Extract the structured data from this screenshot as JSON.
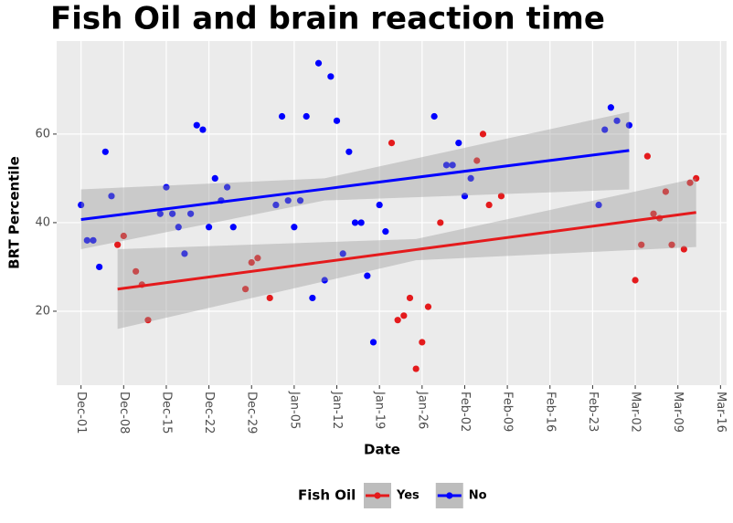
{
  "chart_data": {
    "type": "scatter",
    "title": "Fish Oil and brain reaction time",
    "x_label": "Date",
    "y_label": "BRT Percentile",
    "xlim": [
      "Nov-27",
      "Mar-17"
    ],
    "xticks": [
      "Dec-01",
      "Dec-08",
      "Dec-15",
      "Dec-22",
      "Dec-29",
      "Jan-05",
      "Jan-12",
      "Jan-19",
      "Jan-26",
      "Feb-02",
      "Feb-09",
      "Feb-16",
      "Feb-23",
      "Mar-02",
      "Mar-09",
      "Mar-16"
    ],
    "ylim": [
      3.3,
      81
    ],
    "yticks": [
      20,
      40,
      60
    ],
    "grid": true,
    "legend_title": "Fish Oil",
    "legend_position": "bottom",
    "series": [
      {
        "name": "Yes",
        "color": "#e41a1c",
        "x": [
          "Dec-07",
          "Dec-08",
          "Dec-10",
          "Dec-11",
          "Dec-12",
          "Dec-28",
          "Dec-29",
          "Dec-30",
          "Jan-01",
          "Jan-21",
          "Jan-22",
          "Jan-23",
          "Jan-24",
          "Jan-25",
          "Jan-26",
          "Jan-27",
          "Jan-29",
          "Feb-04",
          "Feb-05",
          "Feb-06",
          "Feb-08",
          "Mar-02",
          "Mar-03",
          "Mar-04",
          "Mar-05",
          "Mar-06",
          "Mar-07",
          "Mar-08",
          "Mar-10",
          "Mar-11",
          "Mar-12"
        ],
        "values": [
          35,
          37,
          29,
          26,
          18,
          25,
          31,
          32,
          23,
          58,
          18,
          19,
          23,
          7,
          13,
          21,
          40,
          54,
          60,
          44,
          46,
          27,
          35,
          55,
          42,
          41,
          47,
          35,
          34,
          49,
          50
        ],
        "fit": {
          "x": [
            "Dec-07",
            "Jan-25",
            "Mar-12"
          ],
          "values": [
            25,
            33.9,
            42.3
          ],
          "lower": [
            16,
            31.5,
            34.5
          ],
          "upper": [
            34,
            36.3,
            50
          ]
        }
      },
      {
        "name": "No",
        "color": "#0000ff",
        "x": [
          "Dec-01",
          "Dec-02",
          "Dec-03",
          "Dec-04",
          "Dec-05",
          "Dec-06",
          "Dec-14",
          "Dec-15",
          "Dec-16",
          "Dec-17",
          "Dec-18",
          "Dec-19",
          "Dec-20",
          "Dec-21",
          "Dec-22",
          "Dec-23",
          "Dec-24",
          "Dec-25",
          "Dec-26",
          "Jan-02",
          "Jan-03",
          "Jan-04",
          "Jan-05",
          "Jan-06",
          "Jan-07",
          "Jan-08",
          "Jan-09",
          "Jan-10",
          "Jan-11",
          "Jan-12",
          "Jan-13",
          "Jan-14",
          "Jan-15",
          "Jan-16",
          "Jan-17",
          "Jan-18",
          "Jan-19",
          "Jan-20",
          "Jan-28",
          "Jan-30",
          "Jan-31",
          "Feb-01",
          "Feb-02",
          "Feb-03",
          "Feb-24",
          "Feb-25",
          "Feb-26",
          "Feb-27",
          "Mar-01"
        ],
        "values": [
          44,
          36,
          36,
          30,
          56,
          46,
          42,
          48,
          42,
          39,
          33,
          42,
          62,
          61,
          39,
          50,
          45,
          48,
          39,
          44,
          64,
          45,
          39,
          45,
          64,
          23,
          76,
          27,
          73,
          63,
          33,
          56,
          40,
          40,
          28,
          13,
          44,
          38,
          64,
          53,
          53,
          58,
          46,
          50,
          44,
          61,
          66,
          63,
          62
        ],
        "fit": {
          "x": [
            "Dec-01",
            "Jan-10",
            "Mar-01"
          ],
          "values": [
            40.7,
            47.6,
            56.3
          ],
          "lower": [
            34,
            45,
            47.5
          ],
          "upper": [
            47.5,
            50,
            65
          ]
        }
      }
    ]
  }
}
